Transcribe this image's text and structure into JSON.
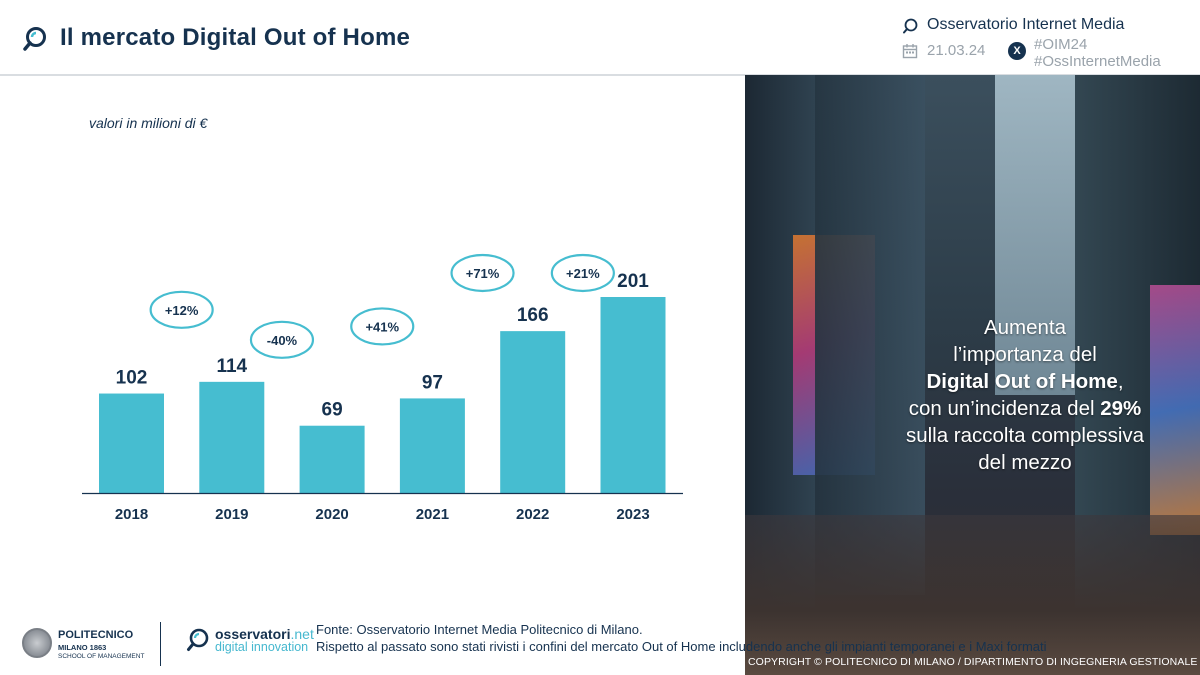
{
  "header": {
    "title": "Il mercato Digital Out of Home",
    "brand": "Osservatorio Internet Media",
    "date": "21.03.24",
    "x_label": "X",
    "hashtag1": "#OIM24",
    "hashtag2": "#OssInternetMedia"
  },
  "chart_data": {
    "type": "bar",
    "units_label": "valori in milioni di €",
    "categories": [
      "2018",
      "2019",
      "2020",
      "2021",
      "2022",
      "2023"
    ],
    "values": [
      102,
      114,
      69,
      97,
      166,
      201
    ],
    "growth_labels": [
      "+12%",
      "-40%",
      "+41%",
      "+71%",
      "+21%"
    ],
    "ylim": [
      0,
      201
    ],
    "bar_color": "#46bdd0"
  },
  "panel": {
    "line1": "Aumenta",
    "line2": "l’importanza del",
    "line3_bold": "Digital Out of Home",
    "line3_end": ",",
    "line4_start": "con un’incidenza del ",
    "line4_bold": "29%",
    "line5": "sulla raccolta complessiva",
    "line6": "del mezzo",
    "copyright": "COPYRIGHT © POLITECNICO DI MILANO / DIPARTIMENTO DI INGEGNERIA GESTIONALE"
  },
  "footer": {
    "poli_name": "POLITECNICO",
    "poli_sub": "MILANO 1863",
    "poli_school": "SCHOOL OF MANAGEMENT",
    "oss_name": "osservatori",
    "oss_domain": ".net",
    "oss_sub": "digital innovation",
    "source_line1": "Fonte: Osservatorio Internet Media Politecnico di Milano.",
    "source_line2": "Rispetto al passato sono stati rivisti i confini del mercato Out of Home includendo anche gli impianti temporanei e i Maxi formati"
  },
  "colors": {
    "navy": "#16324f",
    "accent": "#46bdd0"
  }
}
